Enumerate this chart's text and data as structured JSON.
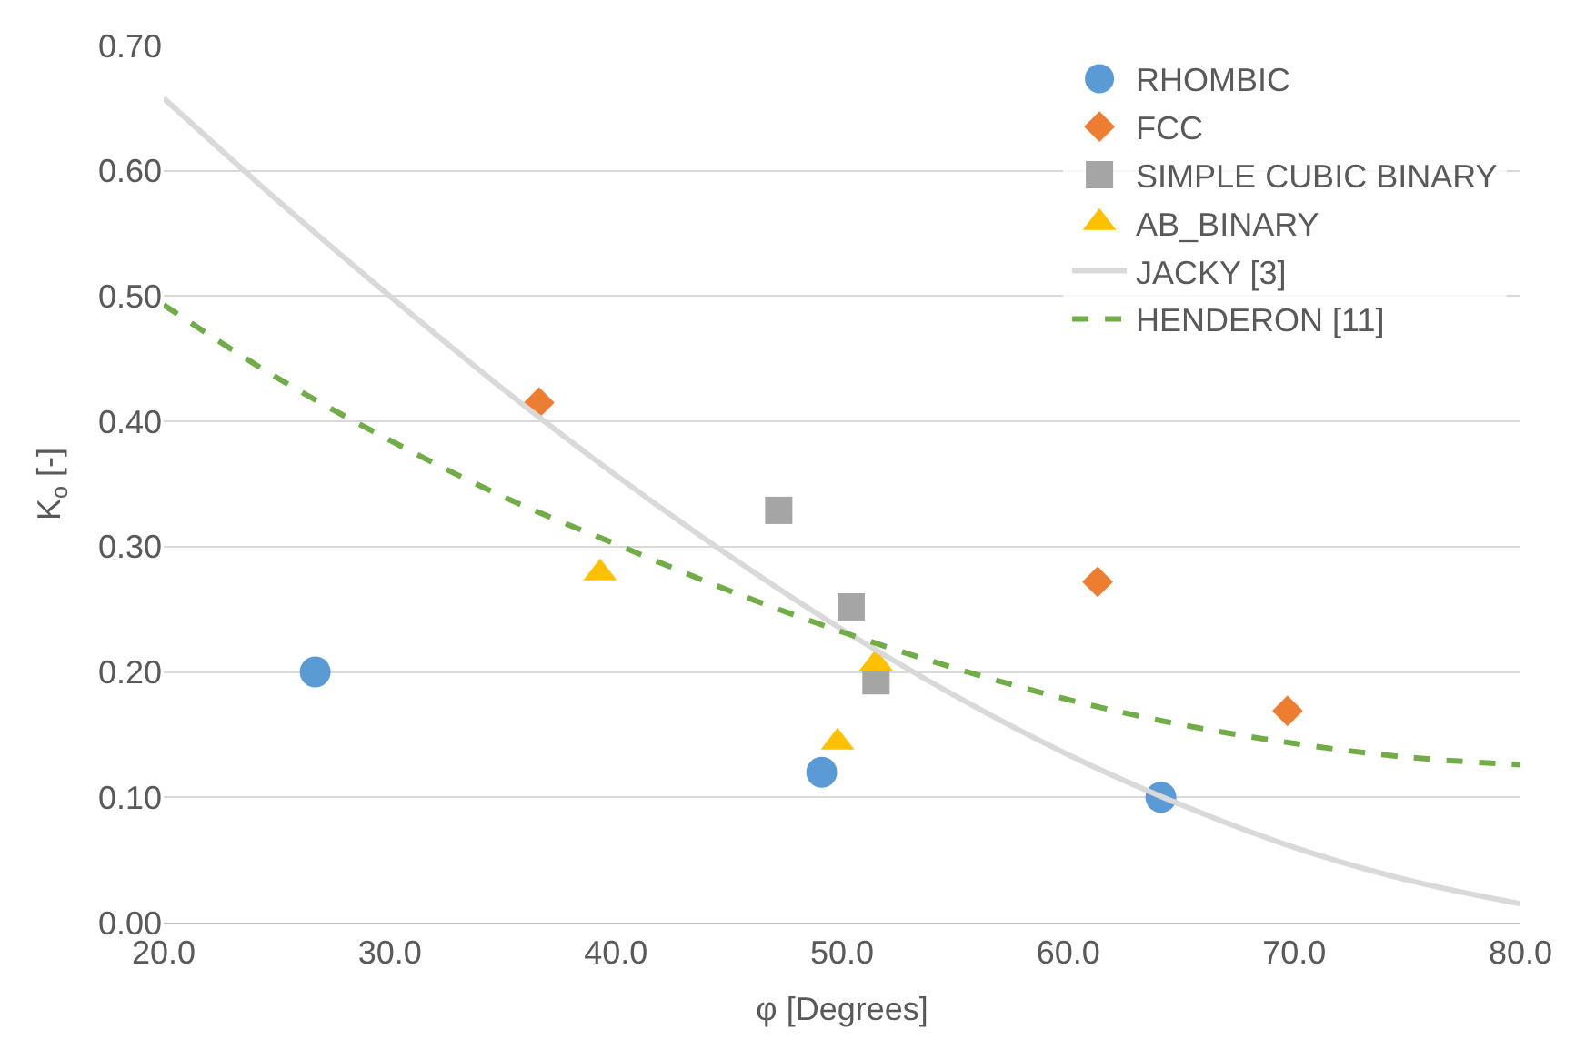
{
  "chart_data": {
    "type": "scatter",
    "xlabel": "φ [Degrees]",
    "ylabel": "K$_{o}$ [-]",
    "xlim": [
      20,
      80
    ],
    "ylim": [
      0,
      0.7
    ],
    "xticks": [
      {
        "value": 20,
        "label": "20.0"
      },
      {
        "value": 30,
        "label": "30.0"
      },
      {
        "value": 40,
        "label": "40.0"
      },
      {
        "value": 50,
        "label": "50.0"
      },
      {
        "value": 60,
        "label": "60.0"
      },
      {
        "value": 70,
        "label": "70.0"
      },
      {
        "value": 80,
        "label": "80.0"
      }
    ],
    "yticks": [
      {
        "value": 0,
        "label": "0.00"
      },
      {
        "value": 0.1,
        "label": "0.10"
      },
      {
        "value": 0.2,
        "label": "0.20"
      },
      {
        "value": 0.3,
        "label": "0.30"
      },
      {
        "value": 0.4,
        "label": "0.40"
      },
      {
        "value": 0.5,
        "label": "0.50"
      },
      {
        "value": 0.6,
        "label": "0.60"
      },
      {
        "value": 0.7,
        "label": "0.70"
      }
    ],
    "grid": "y",
    "legend": "top right",
    "series": [
      {
        "name": "RHOMBIC",
        "color": "#5b9bd5",
        "marker": "circle",
        "x": [
          26.7,
          49.1,
          64.1
        ],
        "values": [
          0.2,
          0.12,
          0.1
        ]
      },
      {
        "name": "FCC",
        "color": "#ed7d31",
        "marker": "diamond",
        "x": [
          36.6,
          61.3,
          69.7
        ],
        "values": [
          0.415,
          0.272,
          0.169
        ]
      },
      {
        "name": "SIMPLE CUBIC BINARY",
        "color": "#a5a5a5",
        "marker": "square",
        "x": [
          47.2,
          50.4,
          51.5
        ],
        "values": [
          0.329,
          0.252,
          0.193
        ]
      },
      {
        "name": "AB_BINARY",
        "color": "#ffc000",
        "marker": "triangle",
        "x": [
          39.3,
          49.8,
          51.5
        ],
        "values": [
          0.279,
          0.144,
          0.207
        ]
      },
      {
        "name": "JACKY [3]",
        "type": "line",
        "color": "#d9d9d9",
        "marker": "none",
        "line_style": "solid",
        "x": [
          20,
          25,
          30,
          35,
          40,
          45,
          50,
          55,
          60,
          65,
          70,
          75,
          80
        ],
        "values": [
          0.658,
          0.577,
          0.5,
          0.426,
          0.357,
          0.293,
          0.234,
          0.181,
          0.134,
          0.094,
          0.06,
          0.034,
          0.015
        ]
      },
      {
        "name": "HENDERON [11]",
        "type": "line",
        "color": "#70ad47",
        "marker": "none",
        "line_style": "dashed",
        "x": [
          20,
          25,
          30,
          35,
          40,
          45,
          50,
          55,
          60,
          65,
          70,
          75,
          80
        ],
        "values": [
          0.493,
          0.435,
          0.385,
          0.34,
          0.302,
          0.265,
          0.232,
          0.203,
          0.178,
          0.158,
          0.143,
          0.132,
          0.126
        ]
      }
    ]
  }
}
